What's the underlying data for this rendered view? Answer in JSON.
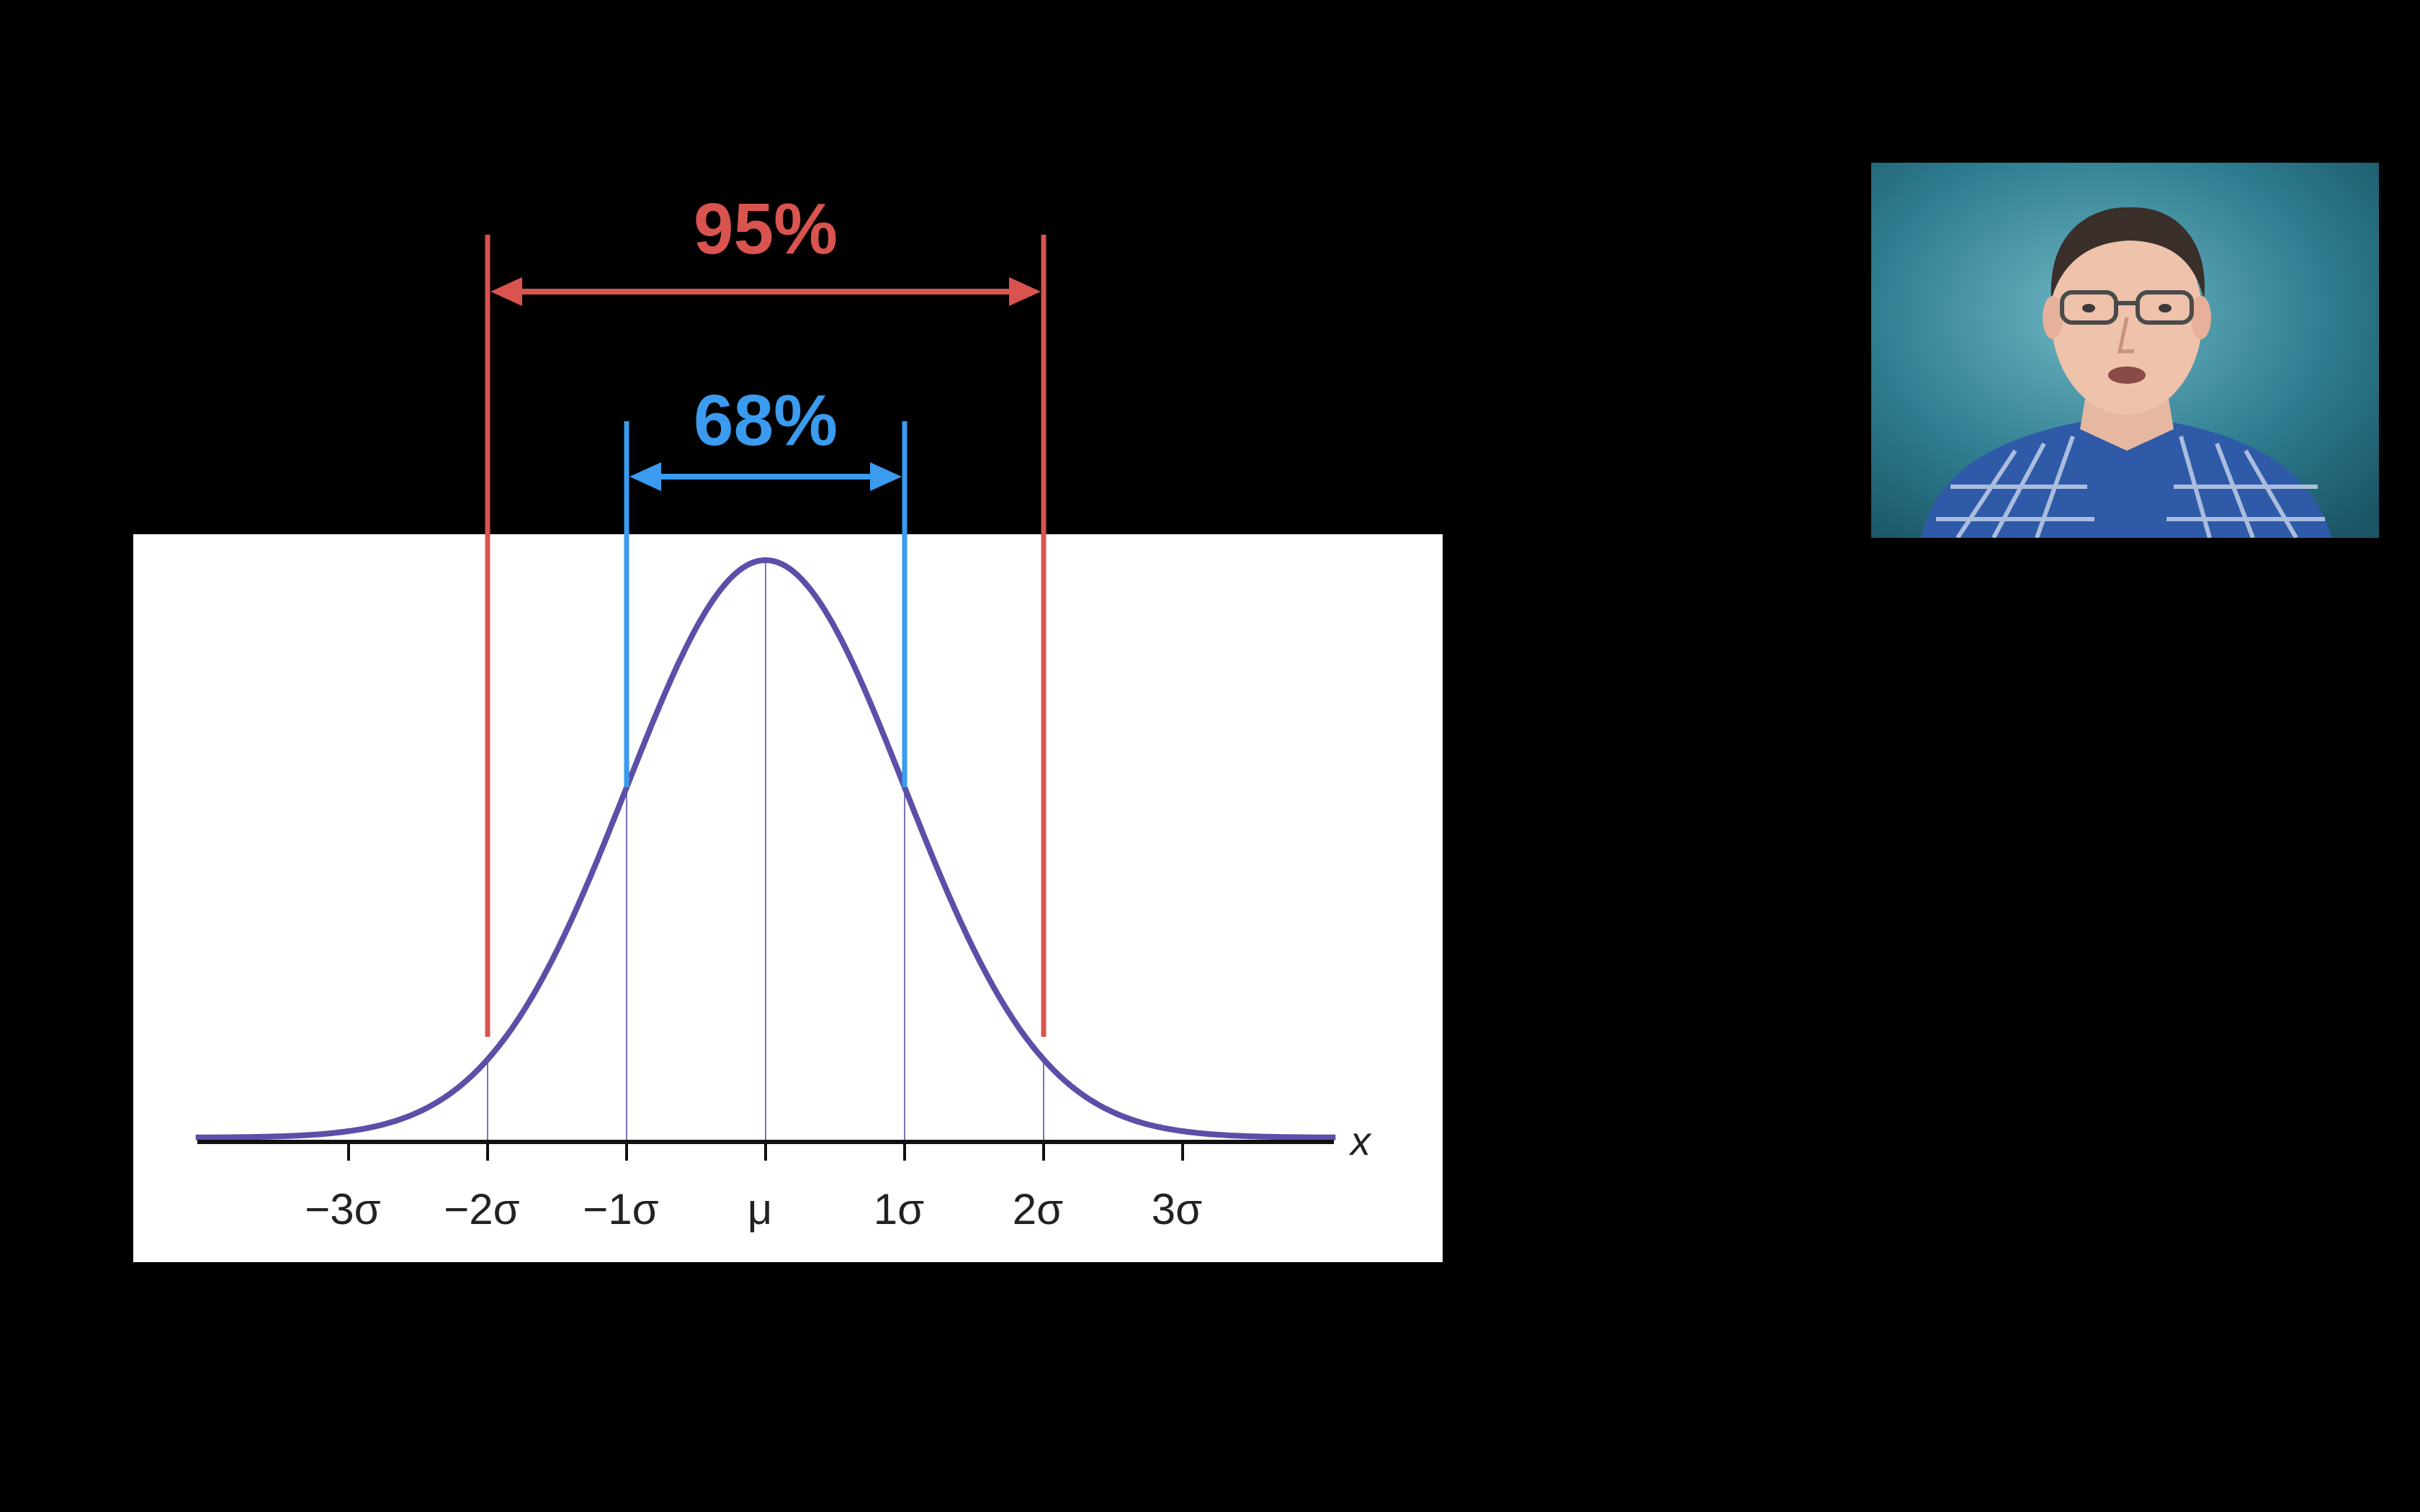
{
  "chart_data": {
    "type": "line",
    "title": "",
    "xlabel": "x",
    "ylabel": "",
    "series": [
      {
        "kind": "normal-density-curve",
        "mean": 0,
        "sd": 1,
        "color": "#5b4fa8"
      }
    ],
    "x_ticks": [
      {
        "value": -3,
        "label": "−3σ"
      },
      {
        "value": -2,
        "label": "−2σ"
      },
      {
        "value": -1,
        "label": "−1σ"
      },
      {
        "value": 0,
        "label": "μ"
      },
      {
        "value": 1,
        "label": "1σ"
      },
      {
        "value": 2,
        "label": "2σ"
      },
      {
        "value": 3,
        "label": "3σ"
      }
    ],
    "xlim": [
      -4.1,
      4.1
    ],
    "annotations": [
      {
        "label": "95%",
        "from": -2,
        "to": 2,
        "color": "#d9534f"
      },
      {
        "label": "68%",
        "from": -1,
        "to": 1,
        "color": "#3a9bef"
      }
    ],
    "grid": false,
    "background": "#ffffff"
  },
  "webcam": {
    "icon": "presenter-video-icon",
    "background_color": "#2f7f92"
  }
}
